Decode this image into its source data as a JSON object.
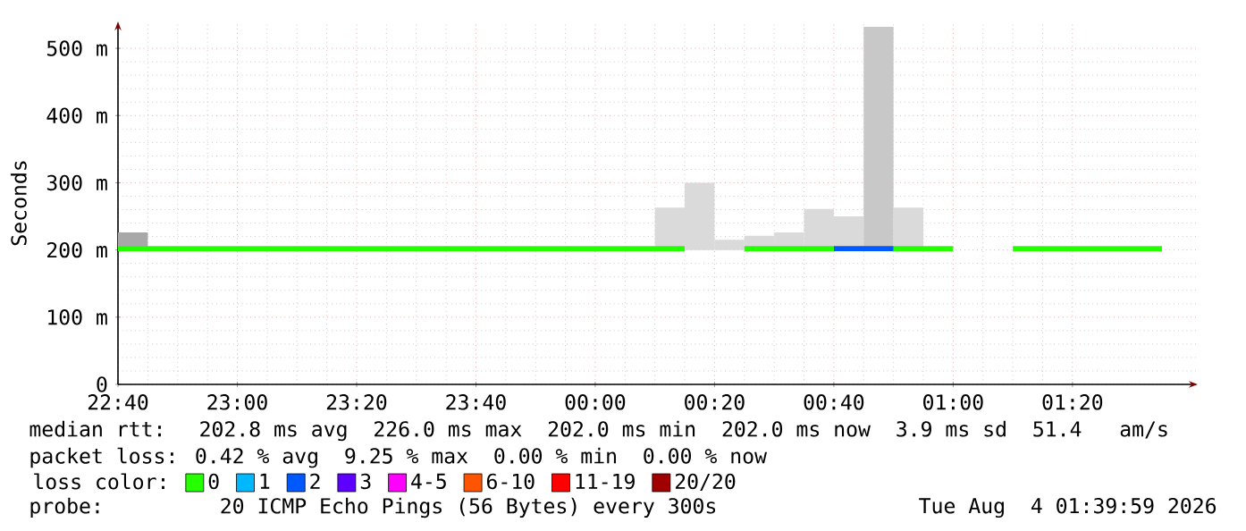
{
  "chart_data": {
    "type": "bar",
    "ylabel": "Seconds",
    "legend_title": "loss color:",
    "legend": "bottom",
    "grid": true,
    "xlim": [
      "2026-08-03T22:40",
      "2026-08-04T01:41"
    ],
    "ylim": [
      0,
      540
    ],
    "xticks": [
      {
        "value": "2026-08-03T22:40",
        "label": "22:40"
      },
      {
        "value": "2026-08-03T23:00",
        "label": "23:00"
      },
      {
        "value": "2026-08-03T23:20",
        "label": "23:20"
      },
      {
        "value": "2026-08-03T23:40",
        "label": "23:40"
      },
      {
        "value": "2026-08-04T00:00",
        "label": "00:00"
      },
      {
        "value": "2026-08-04T00:20",
        "label": "00:20"
      },
      {
        "value": "2026-08-04T00:40",
        "label": "00:40"
      },
      {
        "value": "2026-08-04T01:00",
        "label": "01:00"
      },
      {
        "value": "2026-08-04T01:20",
        "label": "01:20"
      }
    ],
    "yticks": [
      0,
      {
        "value": 100,
        "label": "100 m"
      },
      {
        "value": 200,
        "label": "200 m"
      },
      {
        "value": 300,
        "label": "300 m"
      },
      {
        "value": 400,
        "label": "400 m"
      },
      {
        "value": 500,
        "label": "500 m"
      }
    ],
    "series": [
      {
        "x": [
          "2026-08-03T22:42:30",
          "2026-08-04T00:12:30",
          "2026-08-04T00:17:30",
          "2026-08-04T00:22:30",
          "2026-08-04T00:27:30",
          "2026-08-04T00:32:30",
          "2026-08-04T00:37:30",
          "2026-08-04T00:42:30",
          "2026-08-04T00:47:30",
          "2026-08-04T00:52:30"
        ],
        "base": [
          200,
          200,
          200,
          200,
          200,
          200,
          200,
          200,
          200,
          200
        ],
        "values": [
          26,
          63,
          100,
          15,
          21,
          26,
          61,
          50,
          332,
          63
        ],
        "colors": [
          "#a8a8a8",
          "#dadada",
          "#dadada",
          "#dadada",
          "#dadada",
          "#dadada",
          "#dadada",
          "#dadada",
          "#c8c8c8",
          "#dadada"
        ]
      },
      {
        "type": "step",
        "name": "0",
        "color": "#26ff00",
        "x": [
          "2026-08-03T22:40",
          "2026-08-04T00:15",
          "2026-08-04T00:25",
          "2026-08-04T00:40",
          "2026-08-04T00:50",
          "2026-08-04T01:00",
          "2026-08-04T01:10",
          "2026-08-04T01:35"
        ],
        "values": [
          202,
          null,
          202,
          null,
          202,
          null,
          202,
          202
        ]
      },
      {
        "type": "step",
        "name": "1",
        "color": "#00b8ff"
      },
      {
        "type": "step",
        "name": "2",
        "color": "#0059ff",
        "x": [
          "2026-08-04T00:40",
          "2026-08-04T00:50"
        ],
        "values": [
          202,
          202
        ]
      },
      {
        "type": "step",
        "name": "3",
        "color": "#5e00ff"
      },
      {
        "type": "step",
        "name": "4-5",
        "color": "#ff00ff"
      },
      {
        "type": "step",
        "name": "6-10",
        "color": "#ff5500"
      },
      {
        "type": "step",
        "name": "11-19",
        "color": "#ff0000"
      },
      {
        "type": "step",
        "name": "20/20",
        "color": "#a10000"
      }
    ],
    "annotations": [
      "median rtt:  202.8 ms avg  226.0 ms max  202.0 ms min  202.0 ms now  3.9 ms sd  51.4   am/s",
      "packet loss: 0.42 % avg  9.25 % max  0.00 % min  0.00 % now",
      "probe:       20 ICMP Echo Pings (56 Bytes) every 300s",
      "Tue Aug  4 01:39:59 2026"
    ]
  }
}
